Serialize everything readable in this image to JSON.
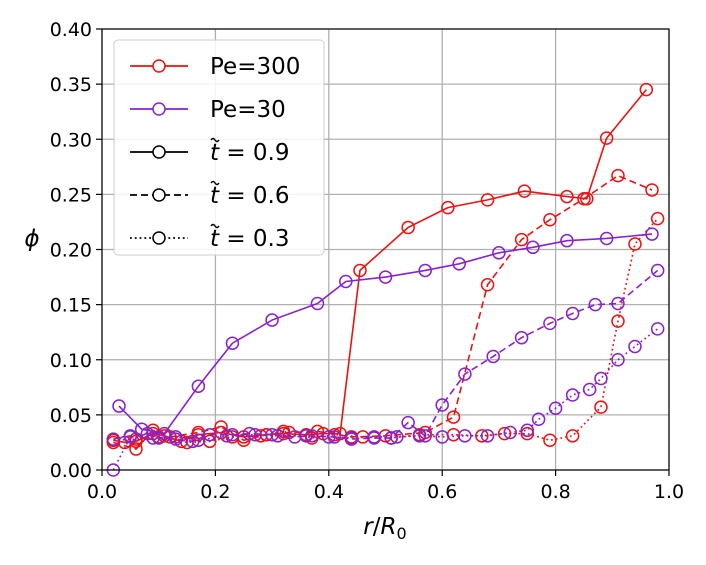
{
  "chart_data": {
    "type": "line",
    "xlabel_main": "r",
    "xlabel_sep": "/",
    "xlabel_var": "R",
    "xlabel_sub": "0",
    "ylabel": "ϕ",
    "xlim": [
      0.0,
      1.0
    ],
    "ylim": [
      0.0,
      0.4
    ],
    "xticks": [
      "0.0",
      "0.2",
      "0.4",
      "0.6",
      "0.8",
      "1.0"
    ],
    "yticks": [
      "0.00",
      "0.05",
      "0.10",
      "0.15",
      "0.20",
      "0.25",
      "0.30",
      "0.35",
      "0.40"
    ],
    "grid": true,
    "legend_position": "top-left",
    "legend": [
      {
        "label": "Pe=300",
        "color": "#ee1111",
        "dash": "solid"
      },
      {
        "label": "Pe=30",
        "color": "#8822cc",
        "dash": "solid"
      },
      {
        "label_prefix": "t",
        "label_suffix": " = 0.9",
        "color": "#000000",
        "dash": "solid"
      },
      {
        "label_prefix": "t",
        "label_suffix": " = 0.6",
        "color": "#000000",
        "dash": "dashed"
      },
      {
        "label_prefix": "t",
        "label_suffix": " = 0.3",
        "color": "#000000",
        "dash": "dotted"
      }
    ],
    "series": [
      {
        "name": "Pe=300, t=0.9",
        "color": "#ee1111",
        "dash": "solid",
        "x": [
          0.02,
          0.04,
          0.06,
          0.09,
          0.11,
          0.14,
          0.17,
          0.21,
          0.25,
          0.29,
          0.32,
          0.36,
          0.39,
          0.42,
          0.455,
          0.54,
          0.61,
          0.68,
          0.745,
          0.82,
          0.855,
          0.89,
          0.96
        ],
        "y": [
          0.027,
          0.025,
          0.026,
          0.033,
          0.031,
          0.026,
          0.032,
          0.034,
          0.03,
          0.032,
          0.033,
          0.032,
          0.033,
          0.033,
          0.181,
          0.22,
          0.238,
          0.245,
          0.253,
          0.248,
          0.246,
          0.301,
          0.345
        ]
      },
      {
        "name": "Pe=300, t=0.6",
        "color": "#ee1111",
        "dash": "dashed",
        "x": [
          0.02,
          0.06,
          0.09,
          0.12,
          0.17,
          0.21,
          0.25,
          0.29,
          0.33,
          0.38,
          0.44,
          0.5,
          0.57,
          0.62,
          0.68,
          0.74,
          0.79,
          0.85,
          0.91,
          0.97
        ],
        "y": [
          0.025,
          0.019,
          0.036,
          0.03,
          0.034,
          0.039,
          0.027,
          0.032,
          0.034,
          0.035,
          0.03,
          0.031,
          0.034,
          0.048,
          0.168,
          0.209,
          0.227,
          0.246,
          0.267,
          0.254
        ]
      },
      {
        "name": "Pe=300, t=0.3",
        "color": "#ee1111",
        "dash": "dotted",
        "x": [
          0.02,
          0.06,
          0.1,
          0.15,
          0.19,
          0.23,
          0.28,
          0.32,
          0.37,
          0.41,
          0.46,
          0.51,
          0.56,
          0.62,
          0.67,
          0.71,
          0.75,
          0.79,
          0.83,
          0.88,
          0.91,
          0.94,
          0.98
        ],
        "y": [
          0.027,
          0.028,
          0.03,
          0.025,
          0.026,
          0.03,
          0.031,
          0.035,
          0.029,
          0.032,
          0.03,
          0.029,
          0.032,
          0.032,
          0.031,
          0.033,
          0.033,
          0.027,
          0.031,
          0.057,
          0.135,
          0.205,
          0.228
        ]
      },
      {
        "name": "Pe=30, t=0.9",
        "color": "#8822cc",
        "dash": "solid",
        "x": [
          0.03,
          0.07,
          0.11,
          0.17,
          0.23,
          0.3,
          0.38,
          0.43,
          0.5,
          0.57,
          0.63,
          0.7,
          0.76,
          0.82,
          0.89,
          0.97
        ],
        "y": [
          0.058,
          0.037,
          0.033,
          0.076,
          0.115,
          0.136,
          0.151,
          0.171,
          0.175,
          0.181,
          0.187,
          0.197,
          0.202,
          0.208,
          0.21,
          0.214
        ]
      },
      {
        "name": "Pe=30, t=0.6",
        "color": "#8822cc",
        "dash": "dashed",
        "x": [
          0.02,
          0.05,
          0.08,
          0.1,
          0.13,
          0.16,
          0.19,
          0.23,
          0.26,
          0.3,
          0.34,
          0.37,
          0.41,
          0.44,
          0.48,
          0.51,
          0.54,
          0.57,
          0.6,
          0.64,
          0.69,
          0.74,
          0.79,
          0.83,
          0.87,
          0.91,
          0.98
        ],
        "y": [
          0.028,
          0.031,
          0.033,
          0.029,
          0.028,
          0.026,
          0.032,
          0.032,
          0.033,
          0.032,
          0.03,
          0.031,
          0.03,
          0.028,
          0.029,
          0.029,
          0.043,
          0.031,
          0.059,
          0.087,
          0.103,
          0.12,
          0.133,
          0.142,
          0.15,
          0.151,
          0.181
        ]
      },
      {
        "name": "Pe=30, t=0.3",
        "color": "#8822cc",
        "dash": "dotted",
        "x": [
          0.02,
          0.05,
          0.09,
          0.13,
          0.17,
          0.22,
          0.27,
          0.31,
          0.36,
          0.4,
          0.44,
          0.48,
          0.52,
          0.56,
          0.6,
          0.64,
          0.68,
          0.72,
          0.75,
          0.77,
          0.8,
          0.83,
          0.86,
          0.88,
          0.91,
          0.94,
          0.98
        ],
        "y": [
          0.0,
          0.03,
          0.029,
          0.03,
          0.027,
          0.031,
          0.032,
          0.031,
          0.031,
          0.03,
          0.029,
          0.03,
          0.03,
          0.031,
          0.03,
          0.031,
          0.031,
          0.034,
          0.036,
          0.046,
          0.056,
          0.068,
          0.073,
          0.083,
          0.1,
          0.112,
          0.128
        ]
      }
    ]
  }
}
